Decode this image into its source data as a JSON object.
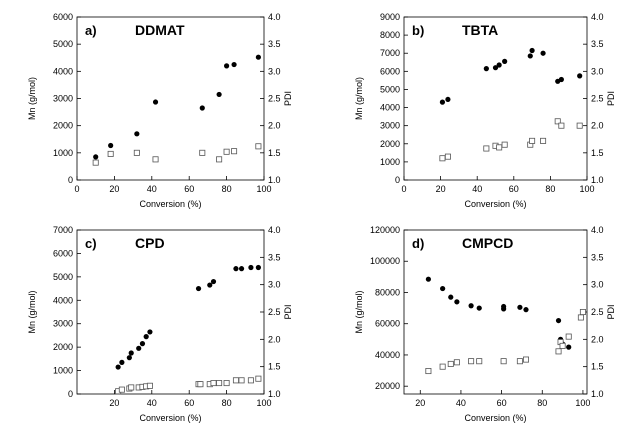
{
  "chart_data": [
    {
      "type": "scatter",
      "panel": "a)",
      "title": "DDMAT",
      "xlabel": "Conversion (%)",
      "ylabel_left": "Mn (g/mol)",
      "ylabel_right": "PDI",
      "xlim": [
        0,
        100
      ],
      "ylim_left": [
        0,
        6000
      ],
      "ylim_right": [
        1.0,
        4.0
      ],
      "xticks": [
        "0",
        "20",
        "40",
        "60",
        "80",
        "100"
      ],
      "yticks_left": [
        "0",
        "1000",
        "2000",
        "3000",
        "4000",
        "5000",
        "6000"
      ],
      "yticks_right": [
        "1.0",
        "1.5",
        "2.0",
        "2.5",
        "3.0",
        "3.5",
        "4.0"
      ],
      "series": [
        {
          "axis": "left",
          "marker": "filled-circle",
          "x": [
            10,
            18,
            32,
            42,
            67,
            76,
            80,
            84,
            97
          ],
          "y": [
            850,
            1270,
            1700,
            2870,
            2650,
            3150,
            4200,
            4250,
            4520
          ]
        },
        {
          "axis": "right",
          "marker": "open-square",
          "x": [
            10,
            18,
            32,
            42,
            67,
            76,
            80,
            84,
            97
          ],
          "y": [
            1.32,
            1.48,
            1.5,
            1.38,
            1.5,
            1.38,
            1.52,
            1.53,
            1.62
          ]
        }
      ]
    },
    {
      "type": "scatter",
      "panel": "b)",
      "title": "TBTA",
      "xlabel": "Conversion (%)",
      "ylabel_left": "Mn (g/mol)",
      "ylabel_right": "PDI",
      "xlim": [
        0,
        100
      ],
      "ylim_left": [
        0,
        9000
      ],
      "ylim_right": [
        1.0,
        4.0
      ],
      "xticks": [
        "0",
        "20",
        "40",
        "60",
        "80",
        "100"
      ],
      "yticks_left": [
        "0",
        "1000",
        "2000",
        "3000",
        "4000",
        "5000",
        "6000",
        "7000",
        "8000",
        "9000"
      ],
      "yticks_right": [
        "1.0",
        "1.5",
        "2.0",
        "2.5",
        "3.0",
        "3.5",
        "4.0"
      ],
      "series": [
        {
          "axis": "left",
          "marker": "filled-circle",
          "x": [
            21,
            24,
            45,
            50,
            52,
            55,
            69,
            70,
            76,
            84,
            86,
            96
          ],
          "y": [
            4300,
            4450,
            6150,
            6200,
            6350,
            6550,
            6850,
            7150,
            7000,
            5450,
            5550,
            5750
          ]
        },
        {
          "axis": "right",
          "marker": "open-square",
          "x": [
            21,
            24,
            45,
            50,
            52,
            55,
            69,
            70,
            76,
            84,
            86,
            96
          ],
          "y": [
            1.4,
            1.43,
            1.58,
            1.63,
            1.6,
            1.65,
            1.65,
            1.72,
            1.72,
            2.08,
            2.0,
            2.0
          ]
        }
      ]
    },
    {
      "type": "scatter",
      "panel": "c)",
      "title": "CPD",
      "xlabel": "Conversion (%)",
      "ylabel_left": "Mn (g/mol)",
      "ylabel_right": "PDI",
      "xlim": [
        0,
        100
      ],
      "ylim_left": [
        0,
        7000
      ],
      "ylim_right": [
        1.0,
        4.0
      ],
      "xticks": [
        "20",
        "40",
        "60",
        "80",
        "100"
      ],
      "yticks_left": [
        "0",
        "1000",
        "2000",
        "3000",
        "4000",
        "5000",
        "6000",
        "7000"
      ],
      "yticks_right": [
        "1.0",
        "1.5",
        "2.0",
        "2.5",
        "3.0",
        "3.5",
        "4.0"
      ],
      "series": [
        {
          "axis": "left",
          "marker": "filled-circle",
          "x": [
            22,
            24,
            28,
            29,
            33,
            35,
            37,
            39,
            65,
            71,
            73,
            85,
            88,
            93,
            97
          ],
          "y": [
            1150,
            1350,
            1550,
            1750,
            1950,
            2150,
            2450,
            2650,
            4500,
            4650,
            4800,
            5350,
            5350,
            5400,
            5400
          ]
        },
        {
          "axis": "right",
          "marker": "open-square",
          "x": [
            22,
            24,
            28,
            29,
            33,
            35,
            37,
            39,
            65,
            66,
            71,
            73,
            76,
            80,
            85,
            88,
            93,
            97
          ],
          "y": [
            1.05,
            1.08,
            1.1,
            1.12,
            1.12,
            1.13,
            1.14,
            1.15,
            1.18,
            1.18,
            1.18,
            1.2,
            1.2,
            1.2,
            1.25,
            1.25,
            1.25,
            1.28
          ]
        }
      ]
    },
    {
      "type": "scatter",
      "panel": "d)",
      "title": "CMPCD",
      "xlabel": "Conversion (%)",
      "ylabel_left": "Mn (g/mol)",
      "ylabel_right": "PDI",
      "xlim": [
        12,
        102
      ],
      "ylim_left": [
        15000,
        120000
      ],
      "ylim_right": [
        1.0,
        4.0
      ],
      "xticks": [
        "20",
        "40",
        "60",
        "80",
        "100"
      ],
      "yticks_left": [
        "20000",
        "40000",
        "60000",
        "80000",
        "100000",
        "120000"
      ],
      "yticks_right": [
        "1.0",
        "1.5",
        "2.0",
        "2.5",
        "3.0",
        "3.5",
        "4.0"
      ],
      "series": [
        {
          "axis": "left",
          "marker": "filled-circle",
          "x": [
            24,
            31,
            35,
            38,
            45,
            49,
            61,
            61,
            69,
            72,
            88,
            89,
            90,
            93
          ],
          "y": [
            88500,
            82500,
            77000,
            74000,
            71500,
            70000,
            71000,
            69500,
            70500,
            69000,
            62000,
            50000,
            47000,
            45000
          ]
        },
        {
          "axis": "right",
          "marker": "open-square",
          "x": [
            24,
            31,
            35,
            38,
            45,
            49,
            61,
            69,
            72,
            88,
            89,
            90,
            93,
            99,
            100
          ],
          "y": [
            1.42,
            1.5,
            1.55,
            1.58,
            1.6,
            1.6,
            1.6,
            1.6,
            1.63,
            1.78,
            1.95,
            1.88,
            2.05,
            2.4,
            2.5
          ]
        }
      ]
    }
  ]
}
